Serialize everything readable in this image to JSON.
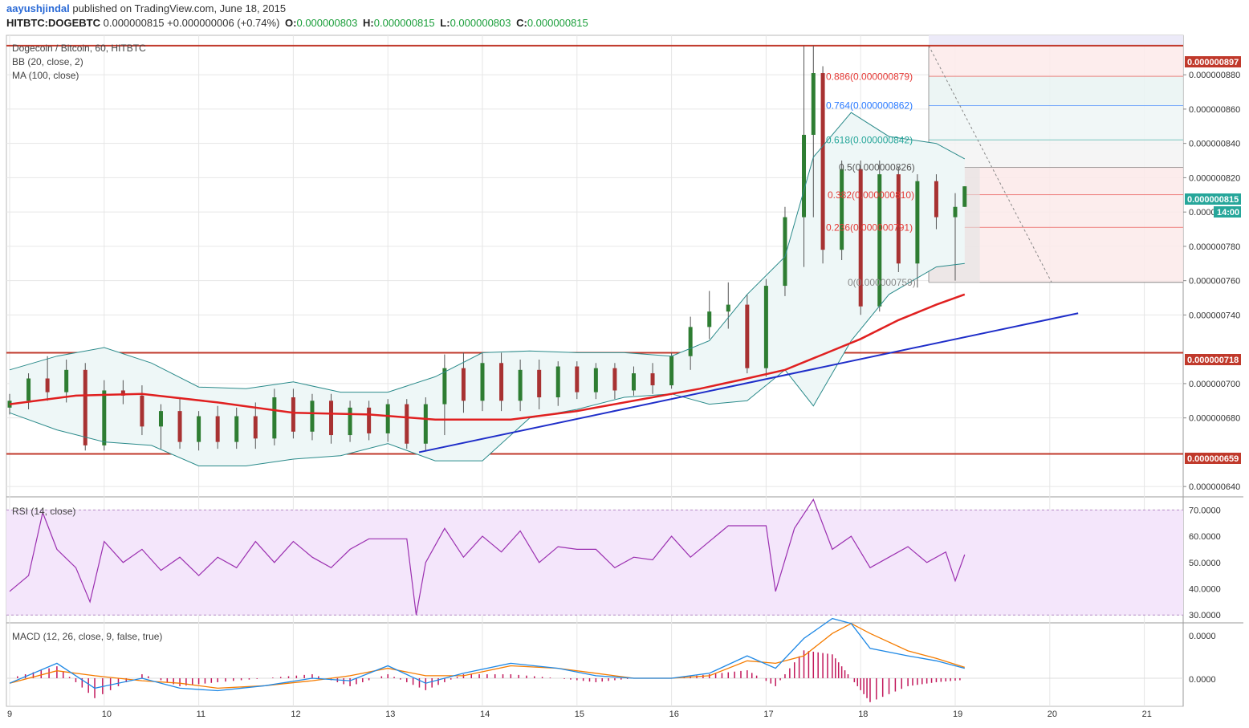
{
  "header": {
    "user": "aayushjindal",
    "published": " published on TradingView.com, June 18, 2015",
    "symbol": "HITBTC:DOGEBTC",
    "last": "0.000000815",
    "change": "+0.000000006 (+0.74%)",
    "o_label": "O:",
    "o_value": "0.000000803",
    "h_label": "H:",
    "h_value": "0.000000815",
    "l_label": "L:",
    "l_value": "0.000000803",
    "c_label": "C:",
    "c_value": "0.000000815"
  },
  "price_pane": {
    "title": "Dogecoin / Bitcoin, 60, HITBTC",
    "indicator1": "BB (20, close, 2)",
    "indicator2": "MA (100, close)"
  },
  "rsi_pane": {
    "title": "RSI (14, close)"
  },
  "macd_pane": {
    "title": "MACD (12, 26, close, 9, false, true)"
  },
  "badges": {
    "level_897": "0.000000897",
    "last_price": "0.000000815",
    "countdown": "14:00",
    "level_718": "0.000000718",
    "level_659": "0.000000659"
  },
  "colors": {
    "resistance_line": "#c0392b",
    "trend_line": "#1f2ec9",
    "ma_line": "#e02020",
    "bb_band": "#2a8a8a",
    "rsi_line": "#9b2fb0",
    "rsi_fill": "#f4e6fb",
    "macd_line": "#1e88e5",
    "signal_line": "#f57c00",
    "histogram": "#c2185b",
    "up_candle": "#2e7d32",
    "down_candle": "#a83232",
    "last_badge": "#26a69a"
  },
  "chart_data": [
    {
      "type": "candlestick",
      "title": "Dogecoin / Bitcoin, 60, HITBTC",
      "x_ticks": [
        "9",
        "10",
        "11",
        "12",
        "13",
        "14",
        "15",
        "16",
        "17",
        "18",
        "19",
        "20",
        "21"
      ],
      "y_ticks": [
        "0.000000880",
        "0.000000860",
        "0.000000840",
        "0.000000820",
        "0.000000800",
        "0.000000780",
        "0.000000760",
        "0.000000740",
        "0.000000700",
        "0.000000680",
        "0.000000640"
      ],
      "ylim": [
        6.34e-07,
        9.03e-07
      ],
      "horizontal_levels": [
        8.97e-07,
        7.18e-07,
        6.59e-07
      ],
      "trend_line": [
        {
          "x": 13.33,
          "y": 6.6e-07
        },
        {
          "x": 20.3,
          "y": 7.41e-07
        }
      ],
      "fibonacci": [
        {
          "label": "0.886(0.000000879)",
          "ratio": 0.886,
          "value": 8.79e-07,
          "color": "#e53935"
        },
        {
          "label": "0.764(0.000000862)",
          "ratio": 0.764,
          "value": 8.62e-07,
          "color": "#2979ff"
        },
        {
          "label": "0.618(0.000000842)",
          "ratio": 0.618,
          "value": 8.42e-07,
          "color": "#26a69a"
        },
        {
          "label": "0.5(0.000000826)",
          "ratio": 0.5,
          "value": 8.26e-07,
          "color": "#555555"
        },
        {
          "label": "0.382(0.000000810)",
          "ratio": 0.382,
          "value": 8.1e-07,
          "color": "#e53935"
        },
        {
          "label": "0.236(0.000000791)",
          "ratio": 0.236,
          "value": 7.91e-07,
          "color": "#e53935"
        },
        {
          "label": "0(0.000000759)",
          "ratio": 0,
          "value": 7.59e-07,
          "color": "#888888"
        }
      ],
      "ma_100": [
        {
          "x": 9.0,
          "y": 6.88e-07
        },
        {
          "x": 9.7,
          "y": 6.93e-07
        },
        {
          "x": 10.4,
          "y": 6.94e-07
        },
        {
          "x": 11.2,
          "y": 6.89e-07
        },
        {
          "x": 12.0,
          "y": 6.83e-07
        },
        {
          "x": 12.8,
          "y": 6.82e-07
        },
        {
          "x": 13.5,
          "y": 6.79e-07
        },
        {
          "x": 14.3,
          "y": 6.79e-07
        },
        {
          "x": 15.0,
          "y": 6.84e-07
        },
        {
          "x": 15.8,
          "y": 6.92e-07
        },
        {
          "x": 16.3,
          "y": 6.97e-07
        },
        {
          "x": 16.8,
          "y": 7.03e-07
        },
        {
          "x": 17.2,
          "y": 7.08e-07
        },
        {
          "x": 17.6,
          "y": 7.17e-07
        },
        {
          "x": 18.0,
          "y": 7.26e-07
        },
        {
          "x": 18.4,
          "y": 7.37e-07
        },
        {
          "x": 18.8,
          "y": 7.46e-07
        },
        {
          "x": 19.1,
          "y": 7.52e-07
        }
      ],
      "bb_upper": [
        {
          "x": 9.0,
          "y": 7.08e-07
        },
        {
          "x": 9.5,
          "y": 7.16e-07
        },
        {
          "x": 10.0,
          "y": 7.21e-07
        },
        {
          "x": 10.5,
          "y": 7.12e-07
        },
        {
          "x": 11.0,
          "y": 6.98e-07
        },
        {
          "x": 11.5,
          "y": 6.97e-07
        },
        {
          "x": 12.0,
          "y": 7.01e-07
        },
        {
          "x": 12.5,
          "y": 6.95e-07
        },
        {
          "x": 13.0,
          "y": 6.95e-07
        },
        {
          "x": 13.5,
          "y": 7.04e-07
        },
        {
          "x": 14.0,
          "y": 7.18e-07
        },
        {
          "x": 14.5,
          "y": 7.19e-07
        },
        {
          "x": 15.0,
          "y": 7.18e-07
        },
        {
          "x": 15.5,
          "y": 7.18e-07
        },
        {
          "x": 16.0,
          "y": 7.16e-07
        },
        {
          "x": 16.4,
          "y": 7.25e-07
        },
        {
          "x": 16.8,
          "y": 7.52e-07
        },
        {
          "x": 17.2,
          "y": 7.74e-07
        },
        {
          "x": 17.5,
          "y": 8.32e-07
        },
        {
          "x": 17.9,
          "y": 8.58e-07
        },
        {
          "x": 18.3,
          "y": 8.44e-07
        },
        {
          "x": 18.8,
          "y": 8.4e-07
        },
        {
          "x": 19.1,
          "y": 8.31e-07
        }
      ],
      "bb_lower": [
        {
          "x": 9.0,
          "y": 6.83e-07
        },
        {
          "x": 9.5,
          "y": 6.73e-07
        },
        {
          "x": 10.0,
          "y": 6.66e-07
        },
        {
          "x": 10.5,
          "y": 6.64e-07
        },
        {
          "x": 11.0,
          "y": 6.52e-07
        },
        {
          "x": 11.5,
          "y": 6.52e-07
        },
        {
          "x": 12.0,
          "y": 6.56e-07
        },
        {
          "x": 12.5,
          "y": 6.58e-07
        },
        {
          "x": 13.0,
          "y": 6.65e-07
        },
        {
          "x": 13.5,
          "y": 6.55e-07
        },
        {
          "x": 14.0,
          "y": 6.55e-07
        },
        {
          "x": 14.5,
          "y": 6.8e-07
        },
        {
          "x": 15.0,
          "y": 6.85e-07
        },
        {
          "x": 15.5,
          "y": 6.92e-07
        },
        {
          "x": 16.0,
          "y": 6.94e-07
        },
        {
          "x": 16.4,
          "y": 6.88e-07
        },
        {
          "x": 16.8,
          "y": 6.9e-07
        },
        {
          "x": 17.2,
          "y": 7.08e-07
        },
        {
          "x": 17.5,
          "y": 6.87e-07
        },
        {
          "x": 17.9,
          "y": 7.25e-07
        },
        {
          "x": 18.3,
          "y": 7.52e-07
        },
        {
          "x": 18.8,
          "y": 7.68e-07
        },
        {
          "x": 19.1,
          "y": 7.7e-07
        }
      ],
      "candles": [
        {
          "x": 9.0,
          "o": 6.86e-07,
          "h": 6.94e-07,
          "l": 6.82e-07,
          "c": 6.9e-07
        },
        {
          "x": 9.2,
          "o": 6.9e-07,
          "h": 7.06e-07,
          "l": 6.85e-07,
          "c": 7.03e-07
        },
        {
          "x": 9.4,
          "o": 7.03e-07,
          "h": 7.16e-07,
          "l": 6.9e-07,
          "c": 6.95e-07
        },
        {
          "x": 9.6,
          "o": 6.95e-07,
          "h": 7.14e-07,
          "l": 6.89e-07,
          "c": 7.08e-07
        },
        {
          "x": 9.8,
          "o": 7.08e-07,
          "h": 7.12e-07,
          "l": 6.61e-07,
          "c": 6.64e-07
        },
        {
          "x": 10.0,
          "o": 6.64e-07,
          "h": 7.02e-07,
          "l": 6.61e-07,
          "c": 6.96e-07
        },
        {
          "x": 10.2,
          "o": 6.96e-07,
          "h": 7.02e-07,
          "l": 6.88e-07,
          "c": 6.93e-07
        },
        {
          "x": 10.4,
          "o": 6.93e-07,
          "h": 6.99e-07,
          "l": 6.7e-07,
          "c": 6.75e-07
        },
        {
          "x": 10.6,
          "o": 6.75e-07,
          "h": 6.88e-07,
          "l": 6.62e-07,
          "c": 6.84e-07
        },
        {
          "x": 10.8,
          "o": 6.84e-07,
          "h": 6.92e-07,
          "l": 6.62e-07,
          "c": 6.66e-07
        },
        {
          "x": 11.0,
          "o": 6.66e-07,
          "h": 6.84e-07,
          "l": 6.61e-07,
          "c": 6.81e-07
        },
        {
          "x": 11.2,
          "o": 6.81e-07,
          "h": 6.87e-07,
          "l": 6.62e-07,
          "c": 6.66e-07
        },
        {
          "x": 11.4,
          "o": 6.66e-07,
          "h": 6.86e-07,
          "l": 6.62e-07,
          "c": 6.81e-07
        },
        {
          "x": 11.6,
          "o": 6.81e-07,
          "h": 6.89e-07,
          "l": 6.62e-07,
          "c": 6.68e-07
        },
        {
          "x": 11.8,
          "o": 6.68e-07,
          "h": 6.97e-07,
          "l": 6.64e-07,
          "c": 6.92e-07
        },
        {
          "x": 12.0,
          "o": 6.92e-07,
          "h": 6.97e-07,
          "l": 6.68e-07,
          "c": 6.72e-07
        },
        {
          "x": 12.2,
          "o": 6.72e-07,
          "h": 6.94e-07,
          "l": 6.67e-07,
          "c": 6.9e-07
        },
        {
          "x": 12.4,
          "o": 6.9e-07,
          "h": 6.94e-07,
          "l": 6.65e-07,
          "c": 6.7e-07
        },
        {
          "x": 12.6,
          "o": 6.7e-07,
          "h": 6.9e-07,
          "l": 6.66e-07,
          "c": 6.86e-07
        },
        {
          "x": 12.8,
          "o": 6.86e-07,
          "h": 6.9e-07,
          "l": 6.67e-07,
          "c": 6.71e-07
        },
        {
          "x": 13.0,
          "o": 6.71e-07,
          "h": 6.91e-07,
          "l": 6.66e-07,
          "c": 6.88e-07
        },
        {
          "x": 13.2,
          "o": 6.88e-07,
          "h": 6.91e-07,
          "l": 6.62e-07,
          "c": 6.65e-07
        },
        {
          "x": 13.4,
          "o": 6.65e-07,
          "h": 6.92e-07,
          "l": 6.61e-07,
          "c": 6.88e-07
        },
        {
          "x": 13.6,
          "o": 6.88e-07,
          "h": 7.17e-07,
          "l": 6.7e-07,
          "c": 7.09e-07
        },
        {
          "x": 13.8,
          "o": 7.09e-07,
          "h": 7.18e-07,
          "l": 6.83e-07,
          "c": 6.9e-07
        },
        {
          "x": 14.0,
          "o": 6.9e-07,
          "h": 7.18e-07,
          "l": 6.84e-07,
          "c": 7.12e-07
        },
        {
          "x": 14.2,
          "o": 7.12e-07,
          "h": 7.18e-07,
          "l": 6.84e-07,
          "c": 6.9e-07
        },
        {
          "x": 14.4,
          "o": 6.9e-07,
          "h": 7.14e-07,
          "l": 6.84e-07,
          "c": 7.08e-07
        },
        {
          "x": 14.6,
          "o": 7.08e-07,
          "h": 7.14e-07,
          "l": 6.85e-07,
          "c": 6.92e-07
        },
        {
          "x": 14.8,
          "o": 6.92e-07,
          "h": 7.13e-07,
          "l": 6.87e-07,
          "c": 7.1e-07
        },
        {
          "x": 15.0,
          "o": 7.1e-07,
          "h": 7.13e-07,
          "l": 6.91e-07,
          "c": 6.95e-07
        },
        {
          "x": 15.2,
          "o": 6.95e-07,
          "h": 7.12e-07,
          "l": 6.91e-07,
          "c": 7.09e-07
        },
        {
          "x": 15.4,
          "o": 7.09e-07,
          "h": 7.12e-07,
          "l": 6.91e-07,
          "c": 6.96e-07
        },
        {
          "x": 15.6,
          "o": 6.96e-07,
          "h": 7.1e-07,
          "l": 6.93e-07,
          "c": 7.06e-07
        },
        {
          "x": 15.8,
          "o": 7.06e-07,
          "h": 7.12e-07,
          "l": 6.94e-07,
          "c": 6.99e-07
        },
        {
          "x": 16.0,
          "o": 6.99e-07,
          "h": 7.18e-07,
          "l": 6.97e-07,
          "c": 7.16e-07
        },
        {
          "x": 16.2,
          "o": 7.16e-07,
          "h": 7.39e-07,
          "l": 7.08e-07,
          "c": 7.33e-07
        },
        {
          "x": 16.4,
          "o": 7.33e-07,
          "h": 7.54e-07,
          "l": 7.26e-07,
          "c": 7.42e-07
        },
        {
          "x": 16.6,
          "o": 7.42e-07,
          "h": 7.59e-07,
          "l": 7.32e-07,
          "c": 7.46e-07
        },
        {
          "x": 16.8,
          "o": 7.46e-07,
          "h": 7.52e-07,
          "l": 7.06e-07,
          "c": 7.09e-07
        },
        {
          "x": 17.0,
          "o": 7.09e-07,
          "h": 7.61e-07,
          "l": 7.04e-07,
          "c": 7.57e-07
        },
        {
          "x": 17.2,
          "o": 7.57e-07,
          "h": 8.03e-07,
          "l": 7.51e-07,
          "c": 7.97e-07
        },
        {
          "x": 17.4,
          "o": 7.97e-07,
          "h": 8.97e-07,
          "l": 7.68e-07,
          "c": 8.45e-07
        },
        {
          "x": 17.5,
          "o": 8.45e-07,
          "h": 8.97e-07,
          "l": 7.97e-07,
          "c": 8.81e-07
        },
        {
          "x": 17.6,
          "o": 8.81e-07,
          "h": 8.85e-07,
          "l": 7.7e-07,
          "c": 7.78e-07
        },
        {
          "x": 17.8,
          "o": 7.78e-07,
          "h": 8.3e-07,
          "l": 7.72e-07,
          "c": 8.25e-07
        },
        {
          "x": 18.0,
          "o": 8.25e-07,
          "h": 8.3e-07,
          "l": 7.4e-07,
          "c": 7.45e-07
        },
        {
          "x": 18.2,
          "o": 7.45e-07,
          "h": 8.3e-07,
          "l": 7.42e-07,
          "c": 8.22e-07
        },
        {
          "x": 18.4,
          "o": 8.22e-07,
          "h": 8.26e-07,
          "l": 7.65e-07,
          "c": 7.7e-07
        },
        {
          "x": 18.6,
          "o": 7.7e-07,
          "h": 8.22e-07,
          "l": 7.56e-07,
          "c": 8.18e-07
        },
        {
          "x": 18.8,
          "o": 8.18e-07,
          "h": 8.22e-07,
          "l": 7.9e-07,
          "c": 7.97e-07
        },
        {
          "x": 19.0,
          "o": 7.97e-07,
          "h": 8.11e-07,
          "l": 7.6e-07,
          "c": 8.03e-07
        },
        {
          "x": 19.1,
          "o": 8.03e-07,
          "h": 8.15e-07,
          "l": 8.03e-07,
          "c": 8.15e-07
        }
      ]
    },
    {
      "type": "line",
      "title": "RSI (14, close)",
      "y_ticks": [
        "70.0000",
        "60.0000",
        "50.0000",
        "40.0000",
        "30.0000"
      ],
      "ylim": [
        27,
        75
      ],
      "bands": [
        30,
        70
      ],
      "x": [
        9.0,
        9.2,
        9.35,
        9.5,
        9.7,
        9.85,
        10.0,
        10.2,
        10.4,
        10.6,
        10.8,
        11.0,
        11.2,
        11.4,
        11.6,
        11.8,
        12.0,
        12.2,
        12.4,
        12.6,
        12.8,
        13.0,
        13.2,
        13.3,
        13.4,
        13.6,
        13.8,
        14.0,
        14.2,
        14.4,
        14.6,
        14.8,
        15.0,
        15.2,
        15.4,
        15.6,
        15.8,
        16.0,
        16.2,
        16.4,
        16.6,
        16.8,
        17.0,
        17.1,
        17.3,
        17.5,
        17.7,
        17.9,
        18.1,
        18.3,
        18.5,
        18.7,
        18.9,
        19.0,
        19.1
      ],
      "values": [
        39,
        45,
        69,
        55,
        48,
        35,
        58,
        50,
        55,
        47,
        52,
        45,
        52,
        48,
        58,
        50,
        58,
        52,
        48,
        55,
        59,
        59,
        59,
        30,
        50,
        63,
        52,
        60,
        54,
        62,
        50,
        56,
        55,
        55,
        48,
        52,
        51,
        60,
        52,
        58,
        64,
        64,
        64,
        39,
        63,
        74,
        55,
        60,
        48,
        52,
        56,
        50,
        54,
        43,
        53
      ]
    },
    {
      "type": "line",
      "title": "MACD (12, 26, close, 9, false, true)",
      "y_ticks": [
        "0.0000",
        "0.0000"
      ],
      "series": [
        {
          "x": [
            9.0,
            9.5,
            9.9,
            10.4,
            10.8,
            11.2,
            11.7,
            12.2,
            12.6,
            13.0,
            13.4,
            13.8,
            14.3,
            14.8,
            15.2,
            15.6,
            16.0,
            16.4,
            16.8,
            17.1,
            17.4,
            17.7,
            17.9,
            18.1,
            18.5,
            18.8,
            19.1
          ],
          "values": [
            -0.1,
            0.3,
            -0.2,
            0.0,
            -0.2,
            -0.25,
            -0.15,
            0.0,
            -0.05,
            0.25,
            -0.1,
            0.1,
            0.3,
            0.2,
            0.05,
            0.0,
            0.0,
            0.1,
            0.45,
            0.2,
            0.8,
            1.2,
            1.1,
            0.6,
            0.45,
            0.35,
            0.2
          ]
        },
        {
          "x": [
            9.0,
            9.5,
            9.9,
            10.4,
            10.8,
            11.2,
            11.7,
            12.2,
            12.6,
            13.0,
            13.4,
            13.8,
            14.3,
            14.8,
            15.2,
            15.6,
            16.0,
            16.4,
            16.8,
            17.1,
            17.4,
            17.7,
            17.9,
            18.1,
            18.5,
            18.8,
            19.1
          ],
          "values": [
            -0.1,
            0.15,
            0.05,
            -0.05,
            -0.1,
            -0.2,
            -0.15,
            -0.05,
            0.05,
            0.2,
            0.05,
            0.05,
            0.25,
            0.2,
            0.1,
            0.0,
            0.0,
            0.05,
            0.35,
            0.3,
            0.45,
            0.9,
            1.1,
            0.9,
            0.55,
            0.4,
            0.22
          ]
        }
      ]
    }
  ]
}
